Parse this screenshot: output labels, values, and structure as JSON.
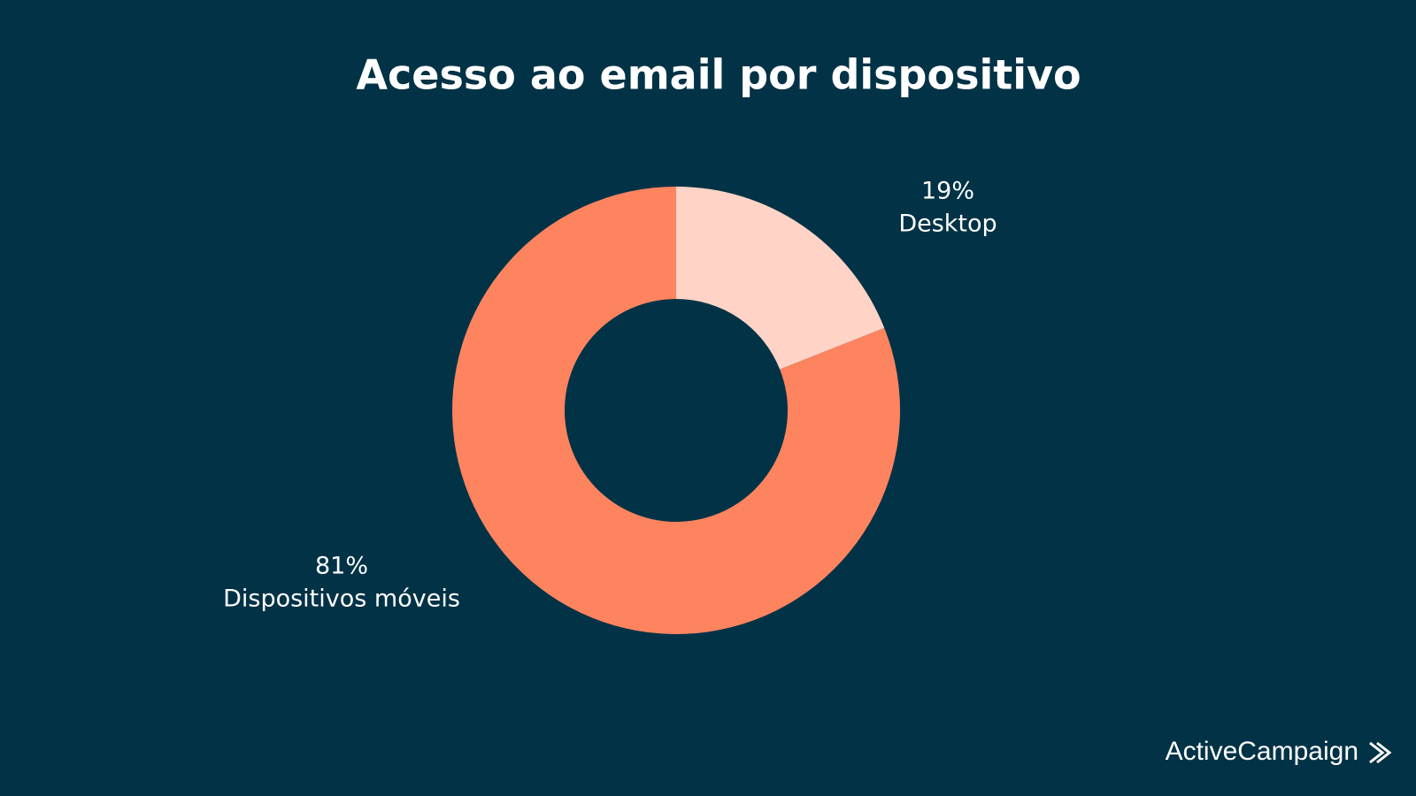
{
  "chart_data": {
    "type": "donut",
    "title": "Acesso ao email por dispositivo",
    "categories": [
      "Desktop",
      "Dispositivos móveis"
    ],
    "values": [
      19,
      81
    ],
    "value_labels": [
      "19%",
      "81%"
    ],
    "colors": [
      "#ffd3c6",
      "#fe845f"
    ]
  },
  "footer": {
    "brand": "ActiveCampaign"
  }
}
